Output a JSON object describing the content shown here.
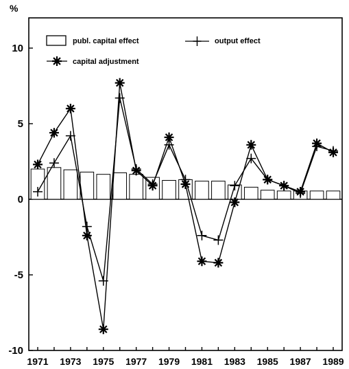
{
  "chart_data": {
    "type": "bar",
    "y_unit": "%",
    "xlim": [
      1971,
      1989
    ],
    "ylim": [
      -10,
      12
    ],
    "y_ticks": [
      10,
      5,
      0,
      -5,
      -10
    ],
    "x_tick_labels": [
      "1971",
      "1973",
      "1975",
      "1977",
      "1979",
      "1981",
      "1983",
      "1985",
      "1987",
      "1989"
    ],
    "x": [
      1971,
      1972,
      1973,
      1974,
      1975,
      1976,
      1977,
      1978,
      1979,
      1980,
      1981,
      1982,
      1983,
      1984,
      1985,
      1986,
      1987,
      1988,
      1989
    ],
    "grid": false,
    "legend_position": "top-left",
    "series": [
      {
        "name": "publ. capital effect",
        "kind": "bar",
        "values": [
          2.0,
          2.1,
          1.95,
          1.8,
          1.65,
          1.75,
          1.65,
          1.45,
          1.25,
          1.3,
          1.2,
          1.2,
          0.95,
          0.8,
          0.6,
          0.55,
          0.55,
          0.55,
          0.55
        ]
      },
      {
        "name": "output effect",
        "kind": "line",
        "marker": "plus",
        "values": [
          0.5,
          2.4,
          4.2,
          -1.8,
          -5.4,
          6.7,
          2.0,
          1.0,
          3.6,
          1.3,
          -2.4,
          -2.7,
          0.9,
          2.7,
          1.3,
          0.9,
          0.4,
          3.5,
          3.2
        ]
      },
      {
        "name": "capital adjustment",
        "kind": "line",
        "marker": "asterisk",
        "values": [
          2.3,
          4.4,
          6.0,
          -2.4,
          -8.6,
          7.7,
          1.9,
          0.9,
          4.1,
          1.0,
          -4.1,
          -4.2,
          -0.2,
          3.6,
          1.3,
          0.9,
          0.5,
          3.7,
          3.1
        ]
      }
    ]
  }
}
